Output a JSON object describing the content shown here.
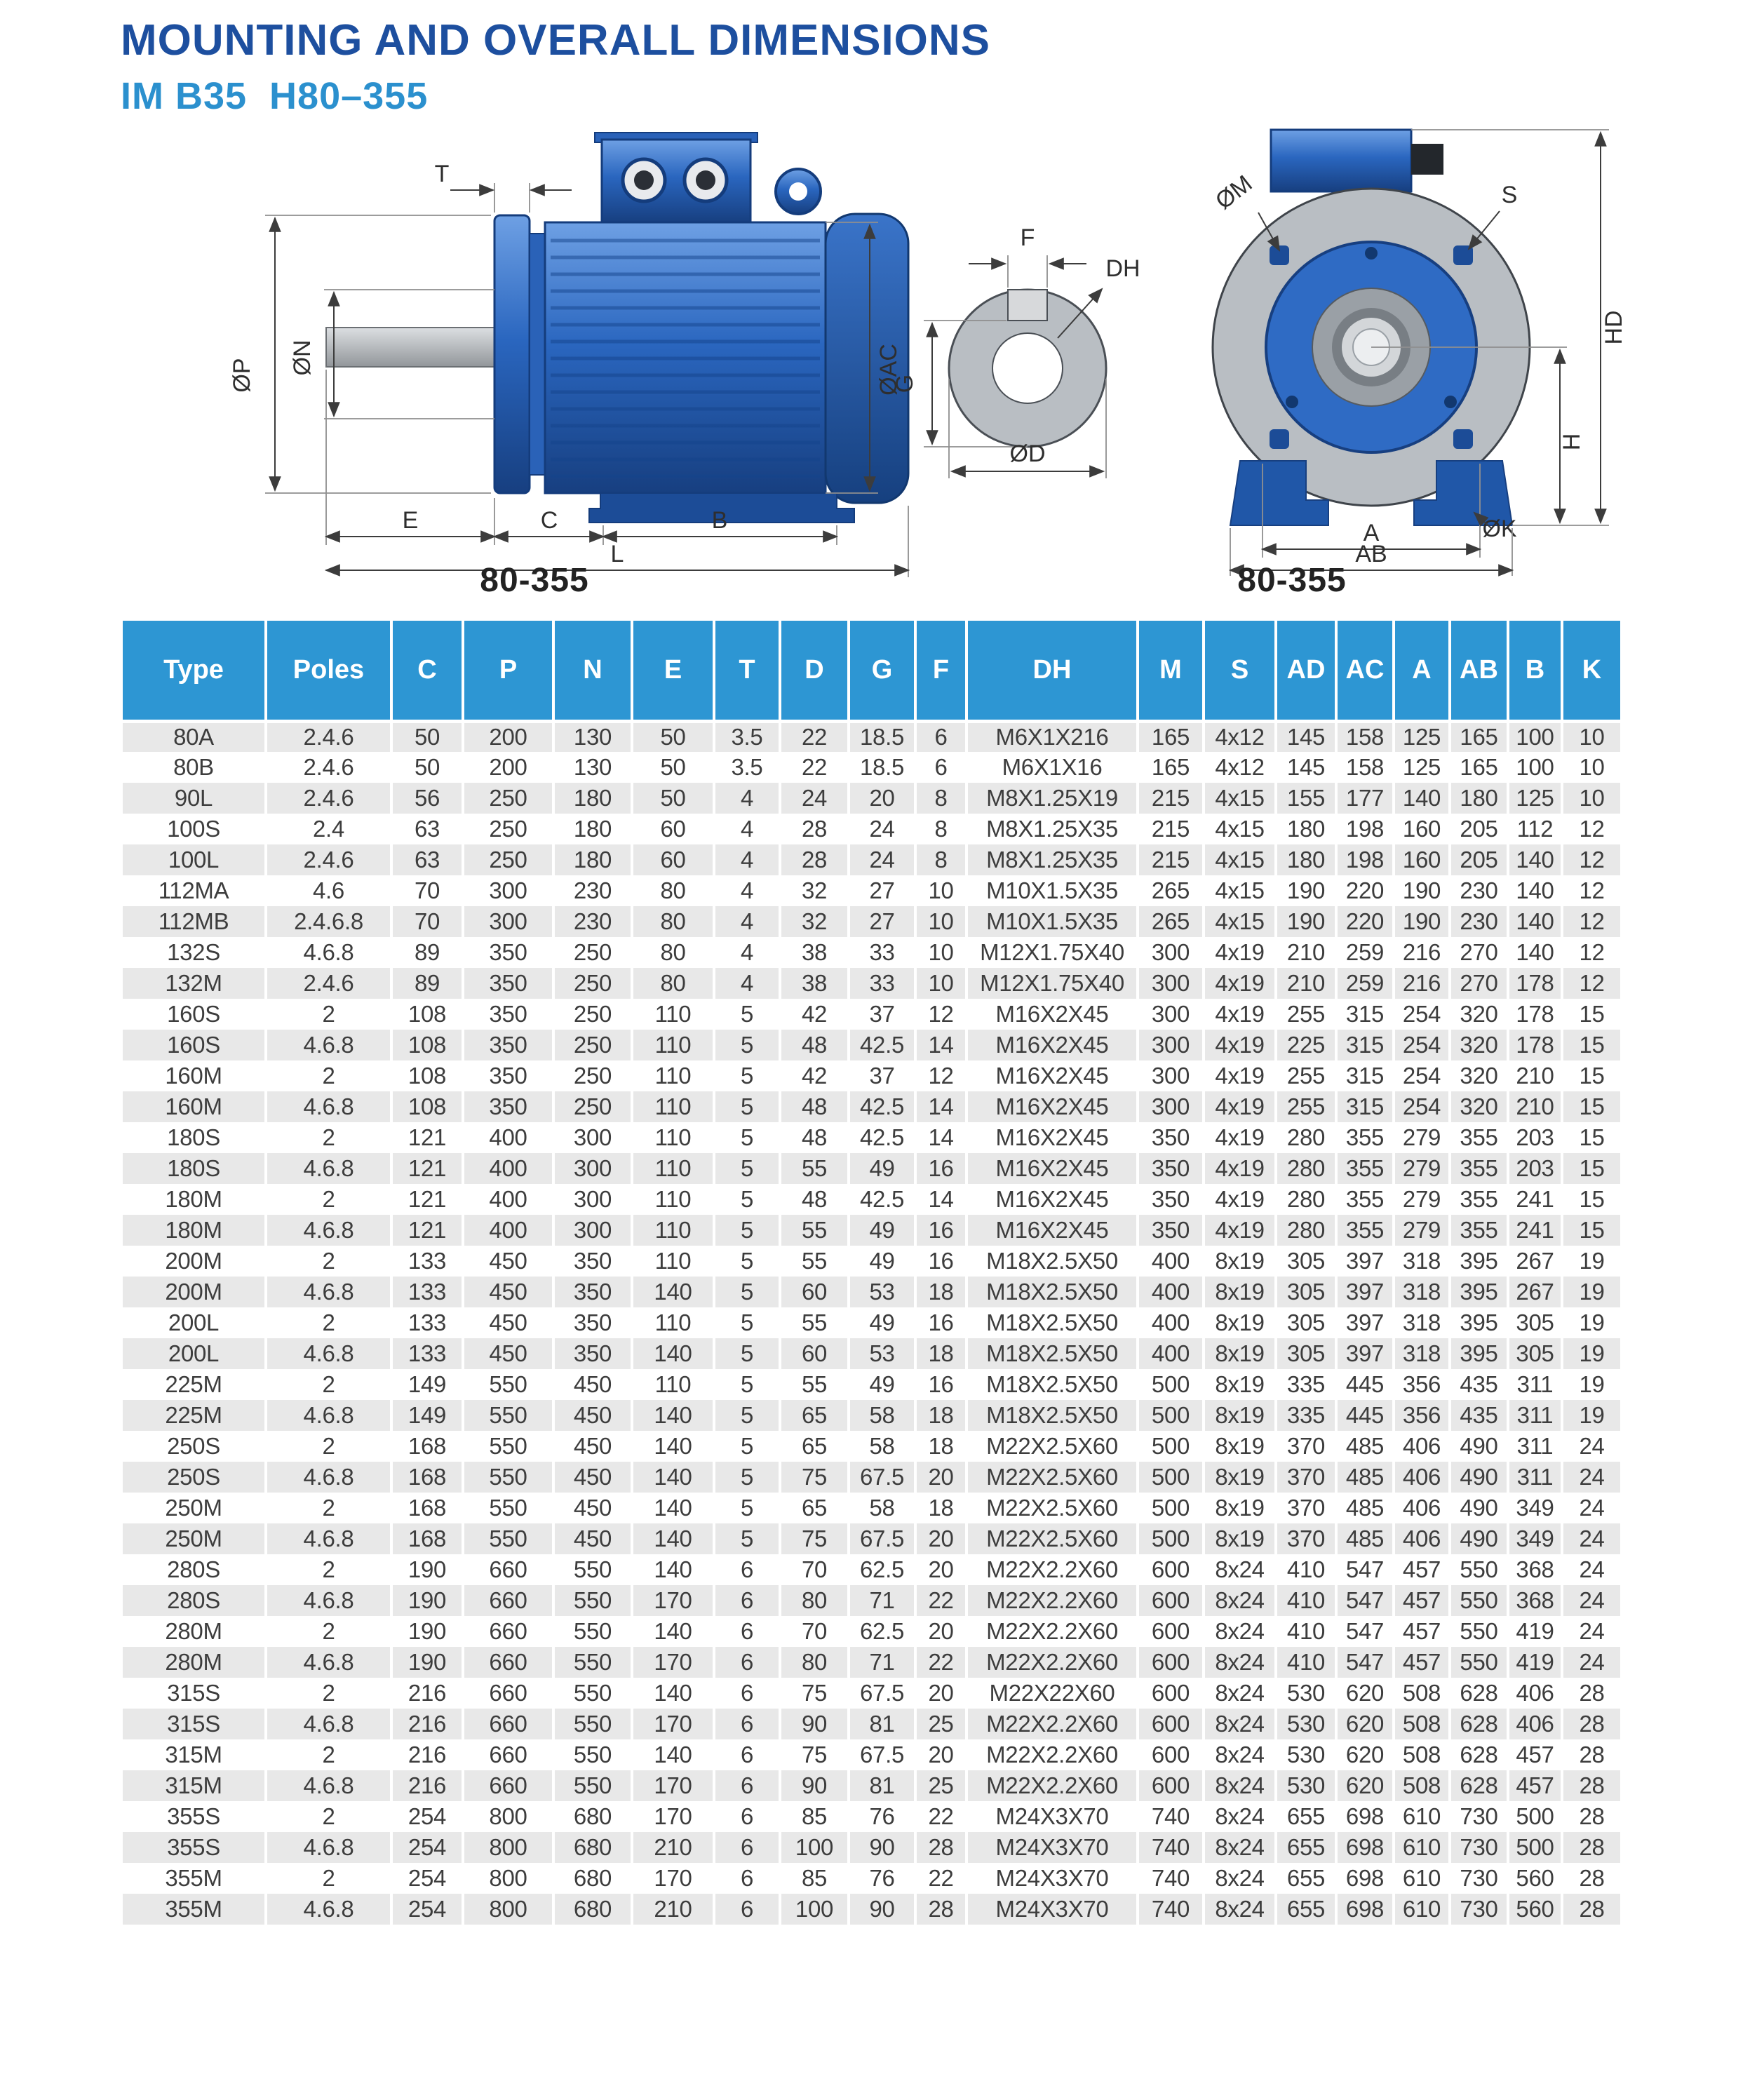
{
  "page": {
    "title": "MOUNTING AND OVERALL DIMENSIONS",
    "subtitle": "IM B35  H80–355"
  },
  "colors": {
    "title_blue": "#1d4f9f",
    "subtitle_blue": "#2b90ce",
    "header_blue": "#2d96d3",
    "row_alt_gray": "#e8e8e8",
    "motor_blue": "#2a62b8"
  },
  "diagrams": {
    "side_view": {
      "caption": "80-355",
      "labels": {
        "t": "T",
        "p": "ØP",
        "n": "ØN",
        "ac": "ØAC",
        "e": "E",
        "c": "C",
        "b": "B",
        "l": "L"
      }
    },
    "shaft_detail": {
      "labels": {
        "f": "F",
        "dh": "DH",
        "g": "G",
        "d": "ØD"
      }
    },
    "front_view": {
      "caption": "80-355",
      "labels": {
        "m": "ØM",
        "s": "S",
        "hd": "HD",
        "h": "H",
        "a": "A",
        "k": "ØK",
        "ab": "AB"
      }
    }
  },
  "table": {
    "columns": [
      "Type",
      "Poles",
      "C",
      "P",
      "N",
      "E",
      "T",
      "D",
      "G",
      "F",
      "DH",
      "M",
      "S",
      "AD",
      "AC",
      "A",
      "AB",
      "B",
      "K"
    ],
    "rows": [
      [
        "80A",
        "2.4.6",
        "50",
        "200",
        "130",
        "50",
        "3.5",
        "22",
        "18.5",
        "6",
        "M6X1X216",
        "165",
        "4x12",
        "145",
        "158",
        "125",
        "165",
        "100",
        "10"
      ],
      [
        "80B",
        "2.4.6",
        "50",
        "200",
        "130",
        "50",
        "3.5",
        "22",
        "18.5",
        "6",
        "M6X1X16",
        "165",
        "4x12",
        "145",
        "158",
        "125",
        "165",
        "100",
        "10"
      ],
      [
        "90L",
        "2.4.6",
        "56",
        "250",
        "180",
        "50",
        "4",
        "24",
        "20",
        "8",
        "M8X1.25X19",
        "215",
        "4x15",
        "155",
        "177",
        "140",
        "180",
        "125",
        "10"
      ],
      [
        "100S",
        "2.4",
        "63",
        "250",
        "180",
        "60",
        "4",
        "28",
        "24",
        "8",
        "M8X1.25X35",
        "215",
        "4x15",
        "180",
        "198",
        "160",
        "205",
        "112",
        "12"
      ],
      [
        "100L",
        "2.4.6",
        "63",
        "250",
        "180",
        "60",
        "4",
        "28",
        "24",
        "8",
        "M8X1.25X35",
        "215",
        "4x15",
        "180",
        "198",
        "160",
        "205",
        "140",
        "12"
      ],
      [
        "112MA",
        "4.6",
        "70",
        "300",
        "230",
        "80",
        "4",
        "32",
        "27",
        "10",
        "M10X1.5X35",
        "265",
        "4x15",
        "190",
        "220",
        "190",
        "230",
        "140",
        "12"
      ],
      [
        "112MB",
        "2.4.6.8",
        "70",
        "300",
        "230",
        "80",
        "4",
        "32",
        "27",
        "10",
        "M10X1.5X35",
        "265",
        "4x15",
        "190",
        "220",
        "190",
        "230",
        "140",
        "12"
      ],
      [
        "132S",
        "4.6.8",
        "89",
        "350",
        "250",
        "80",
        "4",
        "38",
        "33",
        "10",
        "M12X1.75X40",
        "300",
        "4x19",
        "210",
        "259",
        "216",
        "270",
        "140",
        "12"
      ],
      [
        "132M",
        "2.4.6",
        "89",
        "350",
        "250",
        "80",
        "4",
        "38",
        "33",
        "10",
        "M12X1.75X40",
        "300",
        "4x19",
        "210",
        "259",
        "216",
        "270",
        "178",
        "12"
      ],
      [
        "160S",
        "2",
        "108",
        "350",
        "250",
        "110",
        "5",
        "42",
        "37",
        "12",
        "M16X2X45",
        "300",
        "4x19",
        "255",
        "315",
        "254",
        "320",
        "178",
        "15"
      ],
      [
        "160S",
        "4.6.8",
        "108",
        "350",
        "250",
        "110",
        "5",
        "48",
        "42.5",
        "14",
        "M16X2X45",
        "300",
        "4x19",
        "225",
        "315",
        "254",
        "320",
        "178",
        "15"
      ],
      [
        "160M",
        "2",
        "108",
        "350",
        "250",
        "110",
        "5",
        "42",
        "37",
        "12",
        "M16X2X45",
        "300",
        "4x19",
        "255",
        "315",
        "254",
        "320",
        "210",
        "15"
      ],
      [
        "160M",
        "4.6.8",
        "108",
        "350",
        "250",
        "110",
        "5",
        "48",
        "42.5",
        "14",
        "M16X2X45",
        "300",
        "4x19",
        "255",
        "315",
        "254",
        "320",
        "210",
        "15"
      ],
      [
        "180S",
        "2",
        "121",
        "400",
        "300",
        "110",
        "5",
        "48",
        "42.5",
        "14",
        "M16X2X45",
        "350",
        "4x19",
        "280",
        "355",
        "279",
        "355",
        "203",
        "15"
      ],
      [
        "180S",
        "4.6.8",
        "121",
        "400",
        "300",
        "110",
        "5",
        "55",
        "49",
        "16",
        "M16X2X45",
        "350",
        "4x19",
        "280",
        "355",
        "279",
        "355",
        "203",
        "15"
      ],
      [
        "180M",
        "2",
        "121",
        "400",
        "300",
        "110",
        "5",
        "48",
        "42.5",
        "14",
        "M16X2X45",
        "350",
        "4x19",
        "280",
        "355",
        "279",
        "355",
        "241",
        "15"
      ],
      [
        "180M",
        "4.6.8",
        "121",
        "400",
        "300",
        "110",
        "5",
        "55",
        "49",
        "16",
        "M16X2X45",
        "350",
        "4x19",
        "280",
        "355",
        "279",
        "355",
        "241",
        "15"
      ],
      [
        "200M",
        "2",
        "133",
        "450",
        "350",
        "110",
        "5",
        "55",
        "49",
        "16",
        "M18X2.5X50",
        "400",
        "8x19",
        "305",
        "397",
        "318",
        "395",
        "267",
        "19"
      ],
      [
        "200M",
        "4.6.8",
        "133",
        "450",
        "350",
        "140",
        "5",
        "60",
        "53",
        "18",
        "M18X2.5X50",
        "400",
        "8x19",
        "305",
        "397",
        "318",
        "395",
        "267",
        "19"
      ],
      [
        "200L",
        "2",
        "133",
        "450",
        "350",
        "110",
        "5",
        "55",
        "49",
        "16",
        "M18X2.5X50",
        "400",
        "8x19",
        "305",
        "397",
        "318",
        "395",
        "305",
        "19"
      ],
      [
        "200L",
        "4.6.8",
        "133",
        "450",
        "350",
        "140",
        "5",
        "60",
        "53",
        "18",
        "M18X2.5X50",
        "400",
        "8x19",
        "305",
        "397",
        "318",
        "395",
        "305",
        "19"
      ],
      [
        "225M",
        "2",
        "149",
        "550",
        "450",
        "110",
        "5",
        "55",
        "49",
        "16",
        "M18X2.5X50",
        "500",
        "8x19",
        "335",
        "445",
        "356",
        "435",
        "311",
        "19"
      ],
      [
        "225M",
        "4.6.8",
        "149",
        "550",
        "450",
        "140",
        "5",
        "65",
        "58",
        "18",
        "M18X2.5X50",
        "500",
        "8x19",
        "335",
        "445",
        "356",
        "435",
        "311",
        "19"
      ],
      [
        "250S",
        "2",
        "168",
        "550",
        "450",
        "140",
        "5",
        "65",
        "58",
        "18",
        "M22X2.5X60",
        "500",
        "8x19",
        "370",
        "485",
        "406",
        "490",
        "311",
        "24"
      ],
      [
        "250S",
        "4.6.8",
        "168",
        "550",
        "450",
        "140",
        "5",
        "75",
        "67.5",
        "20",
        "M22X2.5X60",
        "500",
        "8x19",
        "370",
        "485",
        "406",
        "490",
        "311",
        "24"
      ],
      [
        "250M",
        "2",
        "168",
        "550",
        "450",
        "140",
        "5",
        "65",
        "58",
        "18",
        "M22X2.5X60",
        "500",
        "8x19",
        "370",
        "485",
        "406",
        "490",
        "349",
        "24"
      ],
      [
        "250M",
        "4.6.8",
        "168",
        "550",
        "450",
        "140",
        "5",
        "75",
        "67.5",
        "20",
        "M22X2.5X60",
        "500",
        "8x19",
        "370",
        "485",
        "406",
        "490",
        "349",
        "24"
      ],
      [
        "280S",
        "2",
        "190",
        "660",
        "550",
        "140",
        "6",
        "70",
        "62.5",
        "20",
        "M22X2.2X60",
        "600",
        "8x24",
        "410",
        "547",
        "457",
        "550",
        "368",
        "24"
      ],
      [
        "280S",
        "4.6.8",
        "190",
        "660",
        "550",
        "170",
        "6",
        "80",
        "71",
        "22",
        "M22X2.2X60",
        "600",
        "8x24",
        "410",
        "547",
        "457",
        "550",
        "368",
        "24"
      ],
      [
        "280M",
        "2",
        "190",
        "660",
        "550",
        "140",
        "6",
        "70",
        "62.5",
        "20",
        "M22X2.2X60",
        "600",
        "8x24",
        "410",
        "547",
        "457",
        "550",
        "419",
        "24"
      ],
      [
        "280M",
        "4.6.8",
        "190",
        "660",
        "550",
        "170",
        "6",
        "80",
        "71",
        "22",
        "M22X2.2X60",
        "600",
        "8x24",
        "410",
        "547",
        "457",
        "550",
        "419",
        "24"
      ],
      [
        "315S",
        "2",
        "216",
        "660",
        "550",
        "140",
        "6",
        "75",
        "67.5",
        "20",
        "M22X22X60",
        "600",
        "8x24",
        "530",
        "620",
        "508",
        "628",
        "406",
        "28"
      ],
      [
        "315S",
        "4.6.8",
        "216",
        "660",
        "550",
        "170",
        "6",
        "90",
        "81",
        "25",
        "M22X2.2X60",
        "600",
        "8x24",
        "530",
        "620",
        "508",
        "628",
        "406",
        "28"
      ],
      [
        "315M",
        "2",
        "216",
        "660",
        "550",
        "140",
        "6",
        "75",
        "67.5",
        "20",
        "M22X2.2X60",
        "600",
        "8x24",
        "530",
        "620",
        "508",
        "628",
        "457",
        "28"
      ],
      [
        "315M",
        "4.6.8",
        "216",
        "660",
        "550",
        "170",
        "6",
        "90",
        "81",
        "25",
        "M22X2.2X60",
        "600",
        "8x24",
        "530",
        "620",
        "508",
        "628",
        "457",
        "28"
      ],
      [
        "355S",
        "2",
        "254",
        "800",
        "680",
        "170",
        "6",
        "85",
        "76",
        "22",
        "M24X3X70",
        "740",
        "8x24",
        "655",
        "698",
        "610",
        "730",
        "500",
        "28"
      ],
      [
        "355S",
        "4.6.8",
        "254",
        "800",
        "680",
        "210",
        "6",
        "100",
        "90",
        "28",
        "M24X3X70",
        "740",
        "8x24",
        "655",
        "698",
        "610",
        "730",
        "500",
        "28"
      ],
      [
        "355M",
        "2",
        "254",
        "800",
        "680",
        "170",
        "6",
        "85",
        "76",
        "22",
        "M24X3X70",
        "740",
        "8x24",
        "655",
        "698",
        "610",
        "730",
        "560",
        "28"
      ],
      [
        "355M",
        "4.6.8",
        "254",
        "800",
        "680",
        "210",
        "6",
        "100",
        "90",
        "28",
        "M24X3X70",
        "740",
        "8x24",
        "655",
        "698",
        "610",
        "730",
        "560",
        "28"
      ]
    ]
  }
}
